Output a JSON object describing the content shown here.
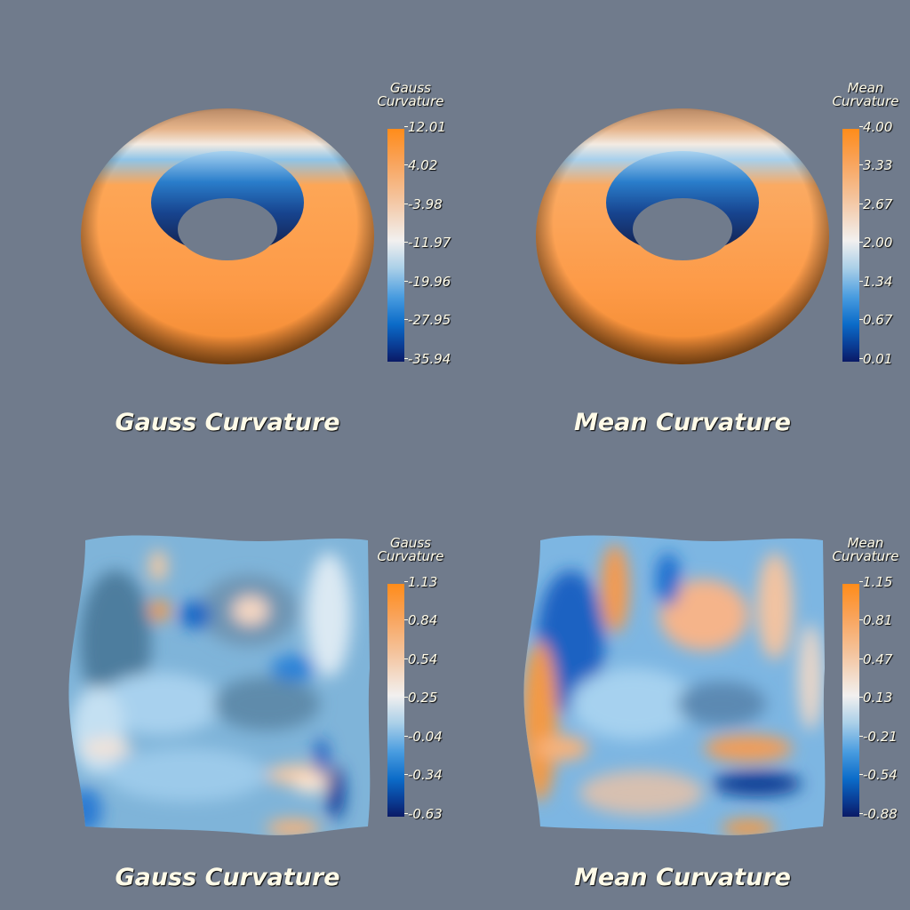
{
  "panels": [
    {
      "id": "torus-gauss",
      "caption": "Gauss Curvature",
      "colorbar_title": [
        "Gauss",
        "Curvature"
      ],
      "ticks": [
        "12.01",
        "4.02",
        "-3.98",
        "-11.97",
        "-19.96",
        "-27.95",
        "-35.94"
      ]
    },
    {
      "id": "torus-mean",
      "caption": "Mean Curvature",
      "colorbar_title": [
        "Mean",
        "Curvature"
      ],
      "ticks": [
        "4.00",
        "3.33",
        "2.67",
        "2.00",
        "1.34",
        "0.67",
        "0.01"
      ]
    },
    {
      "id": "surface-gauss",
      "caption": "Gauss Curvature",
      "colorbar_title": [
        "Gauss",
        "Curvature"
      ],
      "ticks": [
        "1.13",
        "0.84",
        "0.54",
        "0.25",
        "-0.04",
        "-0.34",
        "-0.63"
      ]
    },
    {
      "id": "surface-mean",
      "caption": "Mean Curvature",
      "colorbar_title": [
        "Mean",
        "Curvature"
      ],
      "ticks": [
        "1.15",
        "0.81",
        "0.47",
        "0.13",
        "-0.21",
        "-0.54",
        "-0.88"
      ]
    }
  ],
  "colors": {
    "background": "#707b8c",
    "text": "#fffbe8",
    "colormap": [
      "#ff8c1a",
      "#f4c49e",
      "#f2f0ef",
      "#4a9de0",
      "#0a1a66"
    ]
  }
}
